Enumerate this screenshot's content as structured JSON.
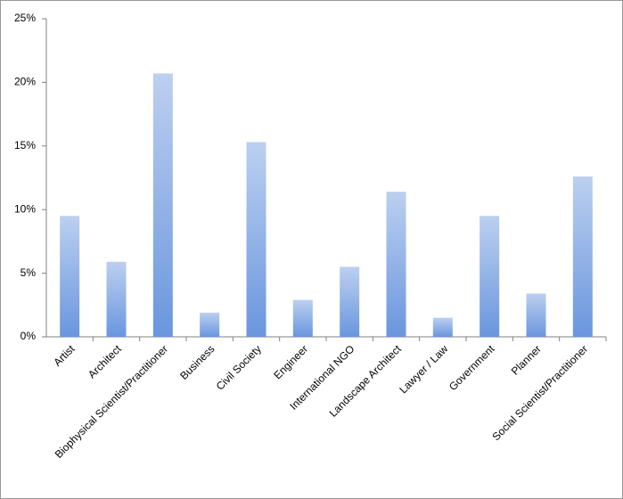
{
  "chart_data": {
    "type": "bar",
    "categories": [
      "Artist",
      "Architect",
      "Biophysical Scientist/Practitioner",
      "Business",
      "Civil Society",
      "Engineer",
      "International NGO",
      "Landscape Architect",
      "Lawyer / Law",
      "Government",
      "Planner",
      "Social Scientist/Practitioner"
    ],
    "values": [
      9.5,
      5.9,
      20.7,
      1.9,
      15.3,
      2.9,
      5.5,
      11.4,
      1.5,
      9.5,
      3.4,
      12.6
    ],
    "color": "#6a96de",
    "ylim": [
      0,
      25
    ],
    "yticks": [
      {
        "value": 0,
        "label": "0%"
      },
      {
        "value": 5,
        "label": "5%"
      },
      {
        "value": 10,
        "label": "10%"
      },
      {
        "value": 15,
        "label": "15%"
      },
      {
        "value": 20,
        "label": "20%"
      },
      {
        "value": 25,
        "label": "25%"
      }
    ],
    "grid": false
  }
}
